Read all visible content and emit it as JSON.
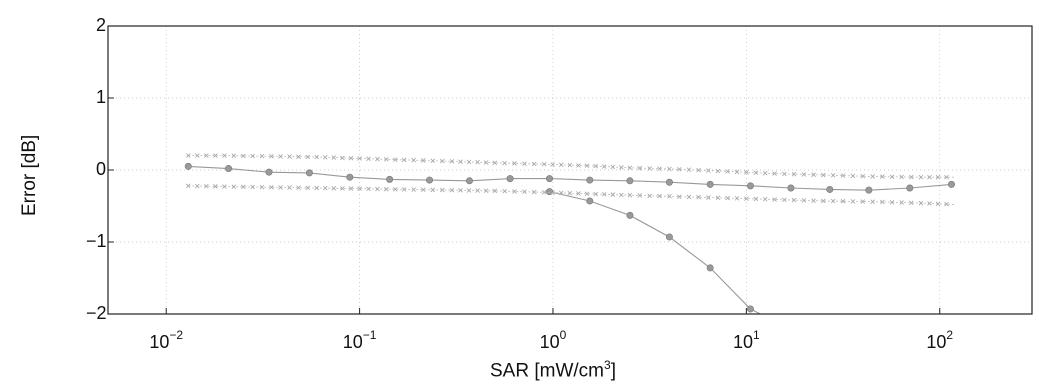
{
  "chart_data": {
    "type": "line",
    "xlabel_prefix": "SAR [mW/cm",
    "xlabel_sup": "3",
    "xlabel_suffix": "]",
    "ylabel": "Error [dB]",
    "xscale": "log",
    "xlim": [
      0.005,
      300
    ],
    "ylim": [
      -2,
      2
    ],
    "yticks": [
      "2",
      "1",
      "0",
      "−1",
      "−2"
    ],
    "xticks": [
      {
        "base": "10",
        "exp": "−2",
        "value": 0.01
      },
      {
        "base": "10",
        "exp": "−1",
        "value": 0.1
      },
      {
        "base": "10",
        "exp": "0",
        "value": 1
      },
      {
        "base": "10",
        "exp": "1",
        "value": 10
      },
      {
        "base": "10",
        "exp": "2",
        "value": 100
      }
    ],
    "grid": true,
    "series": [
      {
        "marker": "dot",
        "x": [
          0.013,
          0.021,
          0.034,
          0.055,
          0.089,
          0.143,
          0.23,
          0.37,
          0.6,
          0.96,
          1.55,
          2.5,
          4.0,
          6.5,
          10.5,
          17,
          27,
          43,
          70,
          115
        ],
        "y": [
          0.05,
          0.02,
          -0.03,
          -0.04,
          -0.1,
          -0.13,
          -0.14,
          -0.15,
          -0.12,
          -0.12,
          -0.14,
          -0.15,
          -0.17,
          -0.2,
          -0.22,
          -0.25,
          -0.27,
          -0.28,
          -0.25,
          -0.2
        ]
      },
      {
        "marker": "dot",
        "x": [
          0.96,
          1.55,
          2.5,
          4.0,
          6.5,
          10.5,
          11.8
        ],
        "y": [
          -0.3,
          -0.43,
          -0.63,
          -0.93,
          -1.36,
          -1.93,
          -2.0
        ]
      },
      {
        "marker": "x",
        "x": [
          0.013,
          0.02,
          0.035,
          0.06,
          0.1,
          0.17,
          0.3,
          0.5,
          0.9,
          1.5,
          2.5,
          4.5,
          8,
          14,
          25,
          45,
          80,
          120
        ],
        "y": [
          0.2,
          0.2,
          0.19,
          0.18,
          0.16,
          0.14,
          0.12,
          0.1,
          0.08,
          0.06,
          0.03,
          0.01,
          -0.02,
          -0.05,
          -0.07,
          -0.09,
          -0.1,
          -0.1
        ]
      },
      {
        "marker": "x",
        "x": [
          0.013,
          0.02,
          0.035,
          0.06,
          0.1,
          0.17,
          0.3,
          0.5,
          0.9,
          1.5,
          2.5,
          4.5,
          8,
          14,
          25,
          45,
          80,
          120
        ],
        "y": [
          -0.22,
          -0.23,
          -0.24,
          -0.25,
          -0.26,
          -0.27,
          -0.28,
          -0.29,
          -0.31,
          -0.33,
          -0.35,
          -0.37,
          -0.39,
          -0.41,
          -0.43,
          -0.44,
          -0.46,
          -0.48
        ]
      }
    ]
  }
}
